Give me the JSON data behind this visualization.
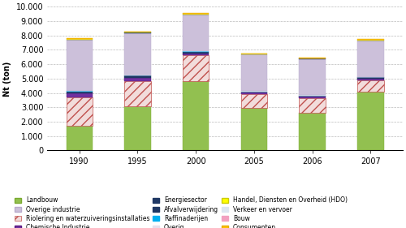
{
  "years": [
    "1990",
    "1995",
    "2000",
    "2005",
    "2006",
    "2007"
  ],
  "segments": [
    {
      "label": "Landbouw",
      "values": [
        1700,
        3050,
        4800,
        2950,
        2600,
        4100
      ],
      "color": "#92c050",
      "hatch": null,
      "edgecolor": "#7aaa30"
    },
    {
      "label": "Riolering en waterzuiveringsinstallaties",
      "values": [
        2000,
        1750,
        1800,
        950,
        1050,
        800
      ],
      "color": "#f2dcdb",
      "hatch": "///",
      "edgecolor": "#c0504d"
    },
    {
      "label": "Chemische Industrie",
      "values": [
        300,
        220,
        160,
        110,
        100,
        100
      ],
      "color": "#7030a0",
      "hatch": null,
      "edgecolor": "#5a1880"
    },
    {
      "label": "Energiesector",
      "values": [
        100,
        200,
        100,
        80,
        60,
        80
      ],
      "color": "#1f3864",
      "hatch": null,
      "edgecolor": "#1f3864"
    },
    {
      "label": "Raffinaderijen",
      "values": [
        20,
        20,
        20,
        15,
        10,
        15
      ],
      "color": "#00b0f0",
      "hatch": null,
      "edgecolor": "#00b0f0"
    },
    {
      "label": "Overig",
      "values": [
        15,
        15,
        15,
        10,
        8,
        10
      ],
      "color": "#e6e0ed",
      "hatch": null,
      "edgecolor": "#e6e0ed"
    },
    {
      "label": "Verkeer en vervoer",
      "values": [
        15,
        15,
        15,
        10,
        8,
        10
      ],
      "color": "#dce6f1",
      "hatch": null,
      "edgecolor": "#dce6f1"
    },
    {
      "label": "Overige industrie",
      "values": [
        3550,
        2900,
        2510,
        2545,
        2530,
        2535
      ],
      "color": "#ccc0da",
      "hatch": null,
      "edgecolor": "#b8accc"
    },
    {
      "label": "Afvalverwijdering",
      "values": [
        20,
        20,
        20,
        15,
        12,
        15
      ],
      "color": "#1f3864",
      "hatch": null,
      "edgecolor": "#1f3864"
    },
    {
      "label": "Handel, Diensten en Overheid (HDO)",
      "values": [
        50,
        70,
        70,
        50,
        40,
        50
      ],
      "color": "#ffff00",
      "hatch": null,
      "edgecolor": "#cccc00"
    },
    {
      "label": "Bouw",
      "values": [
        10,
        10,
        10,
        10,
        8,
        10
      ],
      "color": "#f2a0c0",
      "hatch": null,
      "edgecolor": "#f2a0c0"
    },
    {
      "label": "Consumenten",
      "values": [
        10,
        10,
        10,
        10,
        8,
        10
      ],
      "color": "#ffc000",
      "hatch": null,
      "edgecolor": "#e6ac00"
    }
  ],
  "legend_order": [
    {
      "label": "Landbouw",
      "color": "#92c050",
      "hatch": null,
      "edgecolor": "#7aaa30"
    },
    {
      "label": "Overige industrie",
      "color": "#ccc0da",
      "hatch": null,
      "edgecolor": "#b8accc"
    },
    {
      "label": "Riolering en waterzuiveringsinstallaties",
      "color": "#f2dcdb",
      "hatch": "///",
      "edgecolor": "#c0504d"
    },
    {
      "label": "Chemische Industrie",
      "color": "#7030a0",
      "hatch": null,
      "edgecolor": "#5a1880"
    },
    {
      "label": "Energiesector",
      "color": "#1f3864",
      "hatch": null,
      "edgecolor": "#1f3864"
    },
    {
      "label": "Afvalverwijdering",
      "color": "#1f3864",
      "hatch": null,
      "edgecolor": "#1f3864"
    },
    {
      "label": "Raffinaderijen",
      "color": "#00b0f0",
      "hatch": null,
      "edgecolor": "#00b0f0"
    },
    {
      "label": "Overig",
      "color": "#e6e0ed",
      "hatch": null,
      "edgecolor": "#e6e0ed"
    },
    {
      "label": "Handel, Diensten en Overheid (HDO)",
      "color": "#ffff00",
      "hatch": null,
      "edgecolor": "#cccc00"
    },
    {
      "label": "Verkeer en vervoer",
      "color": "#dce6f1",
      "hatch": null,
      "edgecolor": "#dce6f1"
    },
    {
      "label": "Bouw",
      "color": "#f2a0c0",
      "hatch": null,
      "edgecolor": "#f2a0c0"
    },
    {
      "label": "Consumenten",
      "color": "#ffc000",
      "hatch": null,
      "edgecolor": "#e6ac00"
    }
  ],
  "ylim": [
    0,
    10000
  ],
  "ytick_vals": [
    0,
    1000,
    2000,
    3000,
    4000,
    5000,
    6000,
    7000,
    8000,
    9000,
    10000
  ],
  "ytick_labels": [
    "0",
    "1.000",
    "2.000",
    "3.000",
    "4.000",
    "5.000",
    "6.000",
    "7.000",
    "8.000",
    "9.000",
    "10.000"
  ],
  "ylabel": "Nt (ton)",
  "bar_width": 0.45,
  "figsize": [
    5.0,
    2.81
  ],
  "dpi": 100,
  "background_color": "#ffffff",
  "grid_color": "#bbbbbb",
  "tick_fontsize": 7,
  "legend_fontsize": 5.5
}
